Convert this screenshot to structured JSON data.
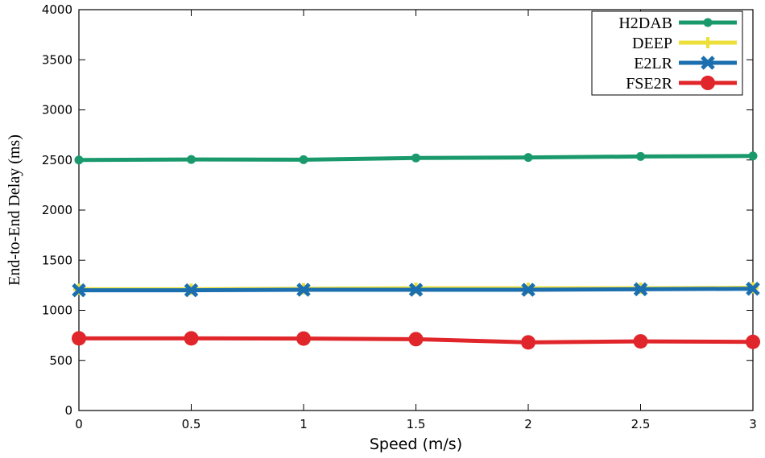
{
  "chart_data": {
    "type": "line",
    "title": "",
    "xlabel": "Speed (m/s)",
    "ylabel": "End-to-End Delay (ms)",
    "xlim": [
      0,
      3
    ],
    "ylim": [
      0,
      4000
    ],
    "x_ticks": [
      "0",
      "0.5",
      "1",
      "1.5",
      "2",
      "2.5",
      "3"
    ],
    "y_ticks": [
      "0",
      "500",
      "1000",
      "1500",
      "2000",
      "2500",
      "3000",
      "3500",
      "4000"
    ],
    "x": [
      0,
      0.5,
      1,
      1.5,
      2,
      2.5,
      3
    ],
    "legend_position": "top-right",
    "series": [
      {
        "name": "H2DAB",
        "color": "#1a9a6c",
        "marker": "circle-small",
        "values": [
          2500,
          2505,
          2503,
          2520,
          2525,
          2535,
          2540
        ]
      },
      {
        "name": "DEEP",
        "color": "#ecdf3a",
        "marker": "plus",
        "values": [
          1210,
          1210,
          1215,
          1220,
          1220,
          1220,
          1225
        ]
      },
      {
        "name": "E2LR",
        "color": "#1b6fae",
        "marker": "x",
        "values": [
          1200,
          1200,
          1205,
          1205,
          1205,
          1210,
          1215
        ]
      },
      {
        "name": "FSE2R",
        "color": "#e0262a",
        "marker": "circle-large",
        "values": [
          720,
          720,
          718,
          712,
          680,
          690,
          685
        ]
      }
    ]
  }
}
